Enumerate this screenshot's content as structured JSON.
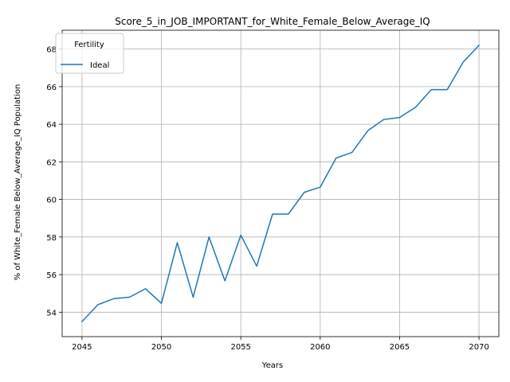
{
  "chart_data": {
    "type": "line",
    "title": "Score_5_in_JOB_IMPORTANT_for_White_Female_Below_Average_IQ",
    "xlabel": "Years",
    "ylabel": "% of White_Female Below_Average_IQ Population",
    "xlim": [
      2043.75,
      2071.25
    ],
    "ylim": [
      52.7,
      69.0
    ],
    "xticks": [
      2045,
      2050,
      2055,
      2060,
      2065,
      2070
    ],
    "yticks": [
      54,
      56,
      58,
      60,
      62,
      64,
      66,
      68
    ],
    "grid": true,
    "legend": {
      "title": "Fertility",
      "position": "top-left"
    },
    "series": [
      {
        "name": "Ideal",
        "color": "#1f77b4",
        "x": [
          2045,
          2046,
          2047,
          2048,
          2049,
          2050,
          2051,
          2052,
          2053,
          2054,
          2055,
          2056,
          2057,
          2058,
          2059,
          2060,
          2061,
          2062,
          2063,
          2064,
          2065,
          2066,
          2067,
          2068,
          2069,
          2070
        ],
        "y": [
          53.5,
          54.4,
          54.72,
          54.8,
          55.25,
          54.47,
          57.7,
          54.8,
          58.0,
          55.67,
          58.1,
          56.45,
          59.22,
          59.22,
          60.38,
          60.65,
          62.2,
          62.5,
          63.66,
          64.25,
          64.36,
          64.9,
          65.84,
          65.84,
          67.3,
          68.2
        ]
      }
    ]
  }
}
